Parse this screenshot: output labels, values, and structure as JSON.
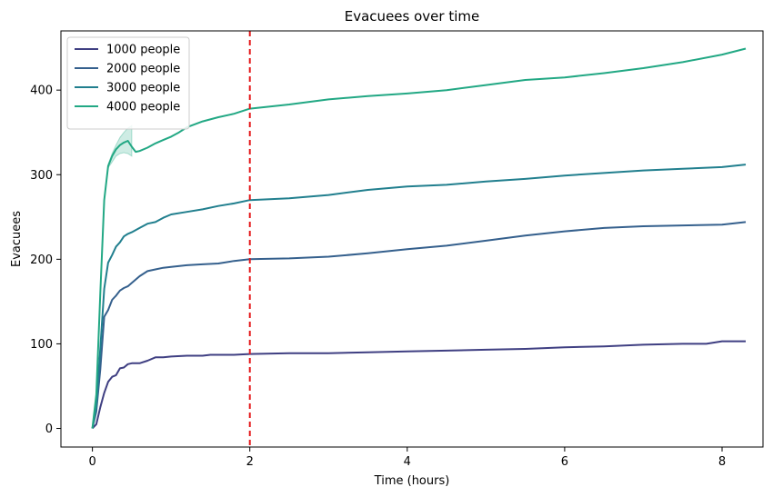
{
  "chart_data": {
    "type": "line",
    "title": "Evacuees over time",
    "xlabel": "Time (hours)",
    "ylabel": "Evacuees",
    "xlim": [
      -0.4,
      8.52
    ],
    "ylim": [
      -22,
      470
    ],
    "xticks": [
      0,
      2,
      4,
      6,
      8
    ],
    "yticks": [
      0,
      100,
      200,
      300,
      400
    ],
    "grid": false,
    "legend_position": "top-left",
    "vline": {
      "x": 2,
      "color": "#e41a1c",
      "style": "dashed"
    },
    "series": [
      {
        "name": "1000 people",
        "color": "#3f3f82",
        "x": [
          0,
          0.05,
          0.1,
          0.15,
          0.2,
          0.25,
          0.3,
          0.35,
          0.4,
          0.45,
          0.5,
          0.6,
          0.7,
          0.8,
          0.9,
          1.0,
          1.2,
          1.4,
          1.5,
          1.8,
          2.0,
          2.5,
          3.0,
          3.5,
          4.0,
          4.5,
          5.0,
          5.5,
          6.0,
          6.5,
          7.0,
          7.5,
          7.8,
          8.0,
          8.3
        ],
        "y": [
          0,
          5,
          25,
          42,
          55,
          61,
          63,
          71,
          72,
          76,
          77,
          77,
          80,
          84,
          84,
          85,
          86,
          86,
          87,
          87,
          88,
          89,
          89,
          90,
          91,
          92,
          93,
          94,
          96,
          97,
          99,
          100,
          100,
          103,
          103
        ]
      },
      {
        "name": "2000 people",
        "color": "#35608d",
        "x": [
          0,
          0.05,
          0.1,
          0.15,
          0.2,
          0.25,
          0.3,
          0.35,
          0.4,
          0.45,
          0.5,
          0.6,
          0.7,
          0.8,
          0.9,
          1.0,
          1.2,
          1.4,
          1.6,
          1.8,
          2.0,
          2.5,
          3.0,
          3.5,
          4.0,
          4.5,
          5.0,
          5.5,
          6.0,
          6.5,
          7.0,
          7.5,
          8.0,
          8.3
        ],
        "y": [
          0,
          20,
          70,
          132,
          140,
          152,
          157,
          163,
          166,
          168,
          172,
          180,
          186,
          188,
          190,
          191,
          193,
          194,
          195,
          198,
          200,
          201,
          203,
          207,
          212,
          216,
          222,
          228,
          233,
          237,
          239,
          240,
          241,
          244
        ]
      },
      {
        "name": "3000 people",
        "color": "#217f8e",
        "x": [
          0,
          0.05,
          0.1,
          0.15,
          0.2,
          0.25,
          0.3,
          0.35,
          0.4,
          0.45,
          0.5,
          0.6,
          0.7,
          0.8,
          0.9,
          1.0,
          1.2,
          1.4,
          1.6,
          1.8,
          2.0,
          2.5,
          3.0,
          3.5,
          4.0,
          4.5,
          5.0,
          5.5,
          6.0,
          6.5,
          7.0,
          7.5,
          8.0,
          8.3
        ],
        "y": [
          0,
          25,
          95,
          165,
          196,
          205,
          215,
          220,
          227,
          230,
          232,
          237,
          242,
          244,
          249,
          253,
          256,
          259,
          263,
          266,
          270,
          272,
          276,
          282,
          286,
          288,
          292,
          295,
          299,
          302,
          305,
          307,
          309,
          312
        ]
      },
      {
        "name": "4000 people",
        "color": "#22a884",
        "x": [
          0,
          0.05,
          0.1,
          0.15,
          0.2,
          0.25,
          0.3,
          0.35,
          0.4,
          0.45,
          0.5,
          0.55,
          0.6,
          0.7,
          0.8,
          0.9,
          1.0,
          1.1,
          1.2,
          1.4,
          1.6,
          1.8,
          2.0,
          2.5,
          3.0,
          3.5,
          4.0,
          4.5,
          5.0,
          5.5,
          6.0,
          6.5,
          7.0,
          7.5,
          8.0,
          8.3
        ],
        "y": [
          0,
          40,
          160,
          270,
          310,
          322,
          330,
          335,
          338,
          340,
          333,
          327,
          328,
          332,
          337,
          341,
          345,
          350,
          356,
          363,
          368,
          372,
          378,
          383,
          389,
          393,
          396,
          400,
          406,
          412,
          415,
          420,
          426,
          433,
          442,
          449
        ]
      }
    ],
    "band": {
      "series": "4000 people",
      "color": "#22a884",
      "x": [
        0.2,
        0.25,
        0.3,
        0.35,
        0.4,
        0.45,
        0.5
      ],
      "upper": [
        312,
        325,
        335,
        344,
        350,
        355,
        358
      ],
      "lower": [
        308,
        315,
        322,
        325,
        326,
        325,
        322
      ]
    }
  }
}
